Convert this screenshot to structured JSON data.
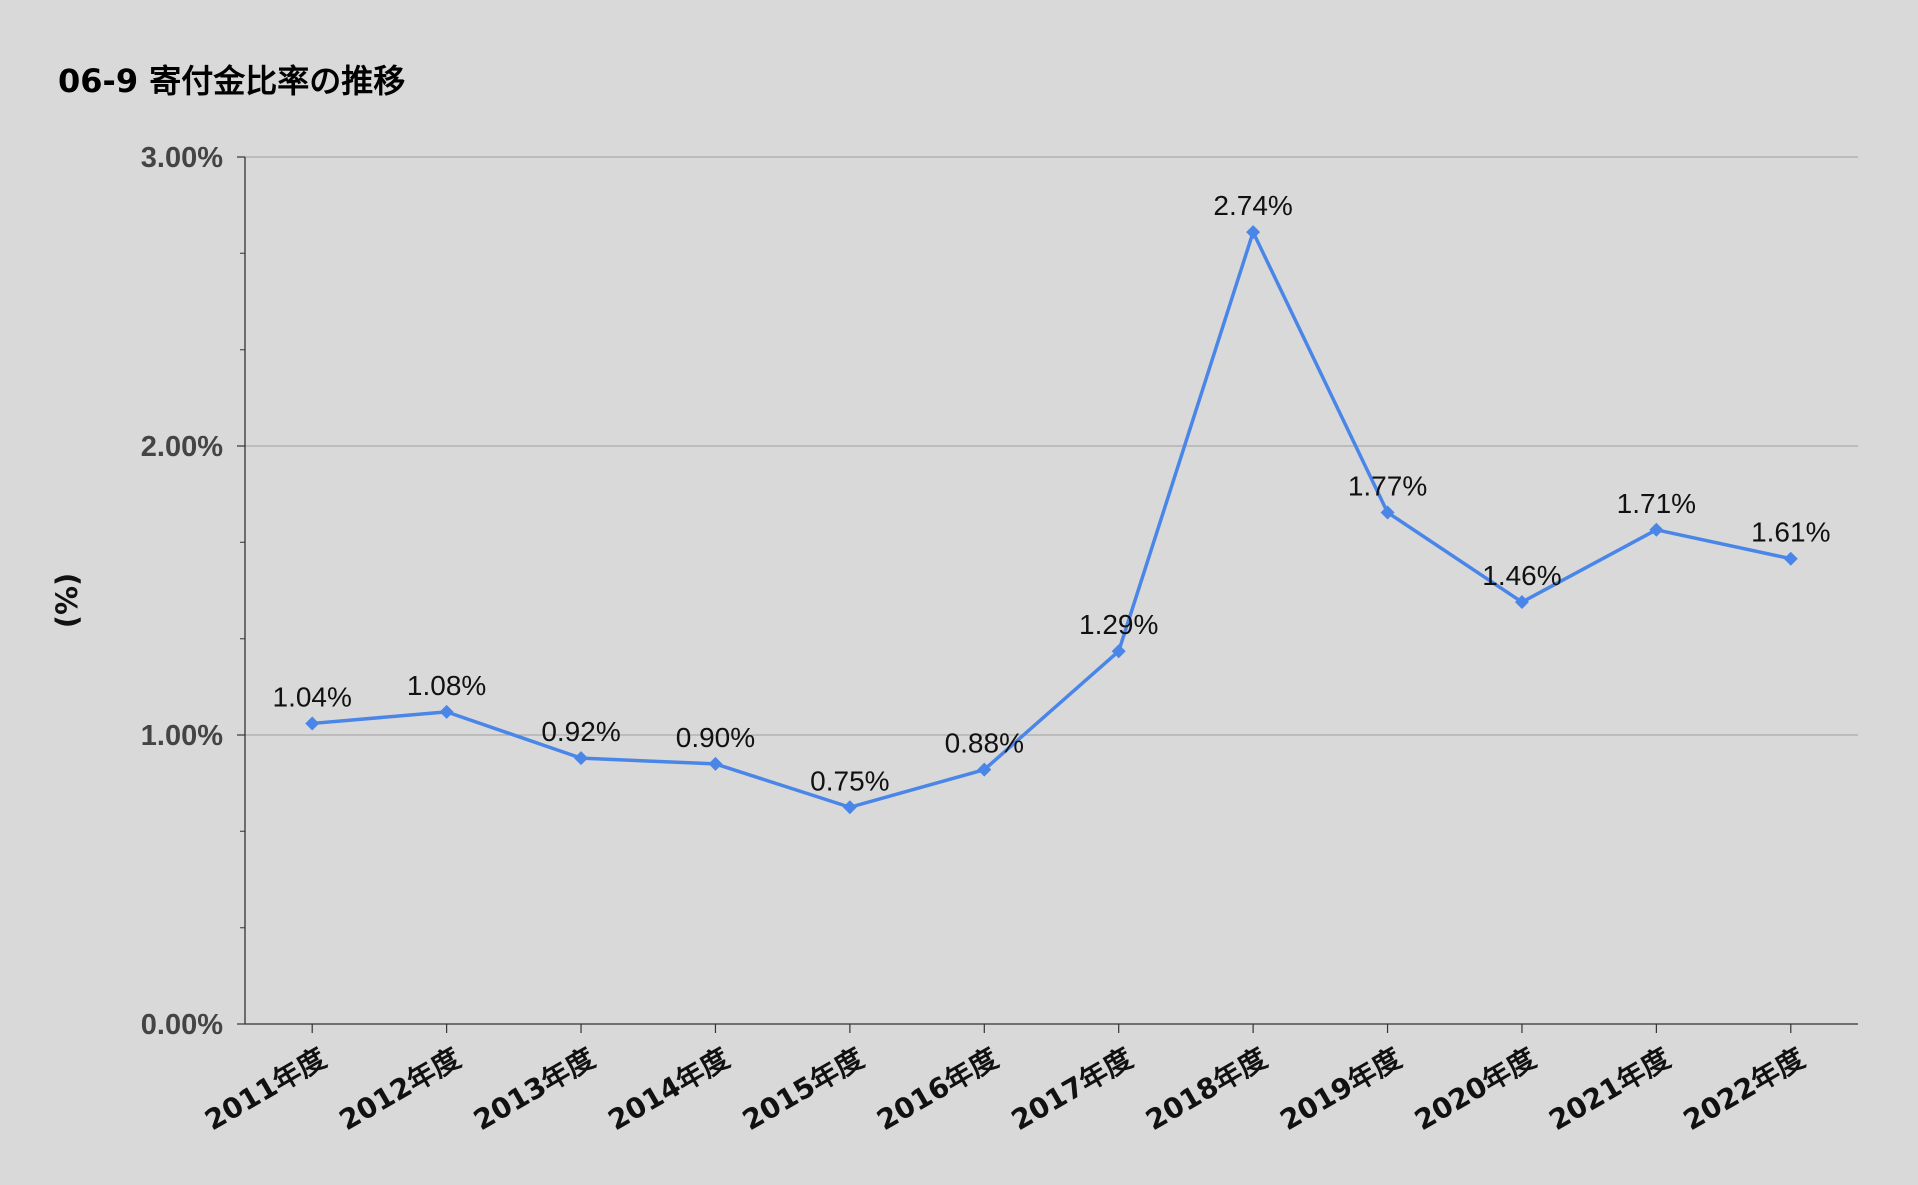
{
  "chart_data": {
    "type": "line",
    "title": "06-9 寄付金比率の推移",
    "xlabel": "",
    "ylabel": "(%)",
    "categories": [
      "2011年度",
      "2012年度",
      "2013年度",
      "2014年度",
      "2015年度",
      "2016年度",
      "2017年度",
      "2018年度",
      "2019年度",
      "2020年度",
      "2021年度",
      "2022年度"
    ],
    "series": [
      {
        "values": [
          1.04,
          1.08,
          0.92,
          0.9,
          0.75,
          0.88,
          1.29,
          2.74,
          1.77,
          1.46,
          1.71,
          1.61
        ],
        "labels": [
          "1.04%",
          "1.08%",
          "0.92%",
          "0.90%",
          "0.75%",
          "0.88%",
          "1.29%",
          "2.74%",
          "1.77%",
          "1.46%",
          "1.71%",
          "1.61%"
        ],
        "color": "#4a86e8",
        "marker": "diamond"
      }
    ],
    "ylim": [
      0,
      3
    ],
    "yticks": [
      0,
      1,
      2,
      3
    ],
    "ytick_labels": [
      "0.00%",
      "1.00%",
      "2.00%",
      "3.00%"
    ],
    "y_minor_ticks": [
      0.333,
      0.667,
      1.333,
      1.667,
      2.333,
      2.667
    ],
    "grid": true,
    "legend": "none",
    "colors": {
      "background": "#d9d9d9",
      "gridline": "#aaaaaa",
      "axis": "#333333",
      "line": "#4a86e8"
    }
  }
}
